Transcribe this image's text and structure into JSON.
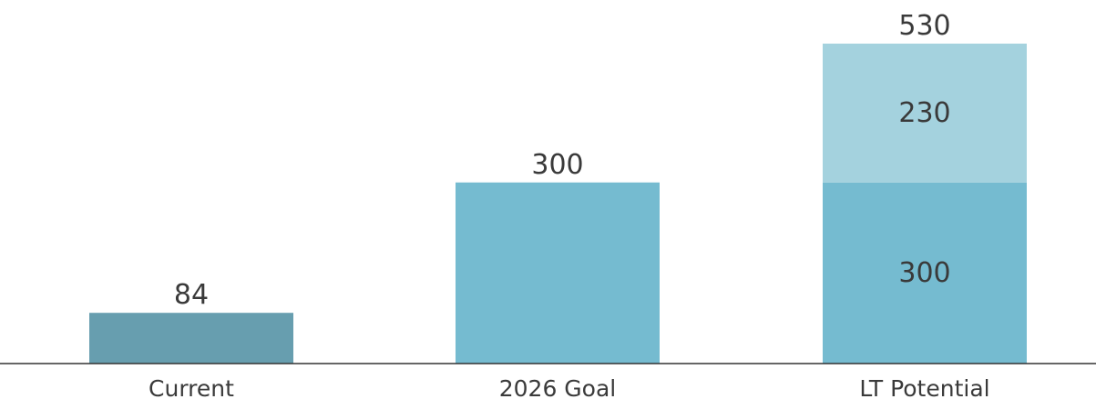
{
  "chart_data": {
    "type": "bar",
    "stacked": true,
    "title": "",
    "xlabel": "",
    "ylabel": "",
    "grid": false,
    "legend": "none",
    "ylim": [
      0,
      530
    ],
    "categories": [
      "Current",
      "2026 Goal",
      "LT Potential"
    ],
    "segments": [
      {
        "category_index": 0,
        "value": 84,
        "label": "84",
        "color": "#679eaf"
      },
      {
        "category_index": 1,
        "value": 300,
        "label": "300",
        "color": "#75bbd0"
      },
      {
        "category_index": 2,
        "value": 300,
        "label": "300",
        "color": "#75bbd0"
      },
      {
        "category_index": 2,
        "value": 230,
        "label": "230",
        "color": "#a4d2de"
      }
    ],
    "totals": [
      {
        "category_index": 2,
        "value": 530,
        "label": "530"
      }
    ],
    "colors": {
      "axis": "#333333",
      "text": "#3a3a3a"
    }
  }
}
